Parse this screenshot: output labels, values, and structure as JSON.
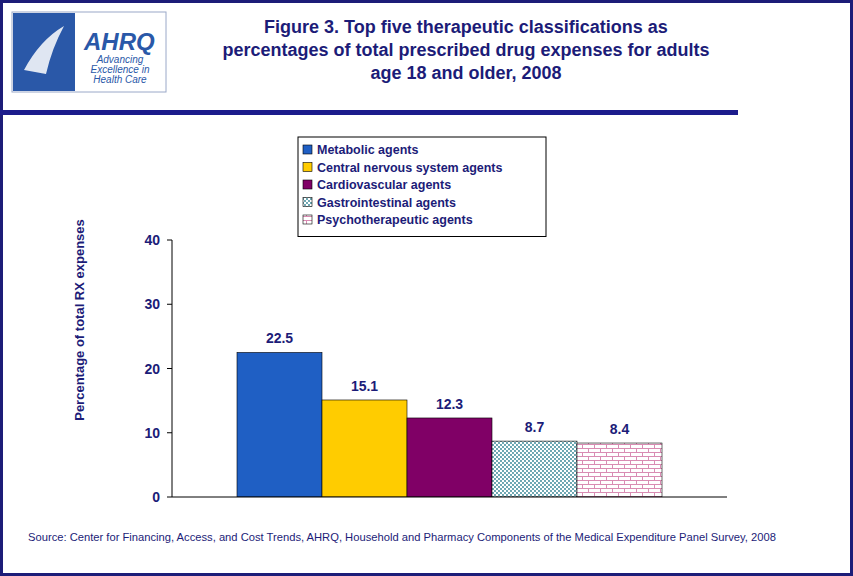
{
  "header": {
    "logo": "AHRQ",
    "tagline": "Advancing Excellence in Health Care"
  },
  "chart_data": {
    "type": "bar",
    "title": "Figure 3. Top five therapeutic classifications as percentages of total prescribed drug expenses for adults age 18 and older, 2008",
    "y_label": "Percentage of total RX expenses",
    "annotations": [
      "Source: Center for Financing, Access, and Cost Trends, AHRQ, Household and Pharmacy Components of the Medical Expenditure Panel Survey, 2008"
    ],
    "categories": [
      null
    ],
    "series": [
      {
        "name": "Metabolic agents",
        "color": "#1f5fc4",
        "values": [
          22.5
        ]
      },
      {
        "name": "Central nervous system agents",
        "color": "#ffcc00",
        "values": [
          15.1
        ]
      },
      {
        "name": "Cardiovascular agents",
        "color": "#800066",
        "values": [
          12.3
        ]
      },
      {
        "name": "Gastrointestinal agents",
        "color": "#2a7f8f",
        "values": [
          8.7
        ]
      },
      {
        "name": "Psychotherapeutic agents",
        "color": "#d98cb3",
        "values": [
          8.4
        ]
      }
    ],
    "ylim": [
      0,
      40
    ],
    "yticks": [
      0,
      10,
      20,
      30,
      40
    ],
    "grid": false,
    "legend": "top",
    "data_labels": true
  }
}
